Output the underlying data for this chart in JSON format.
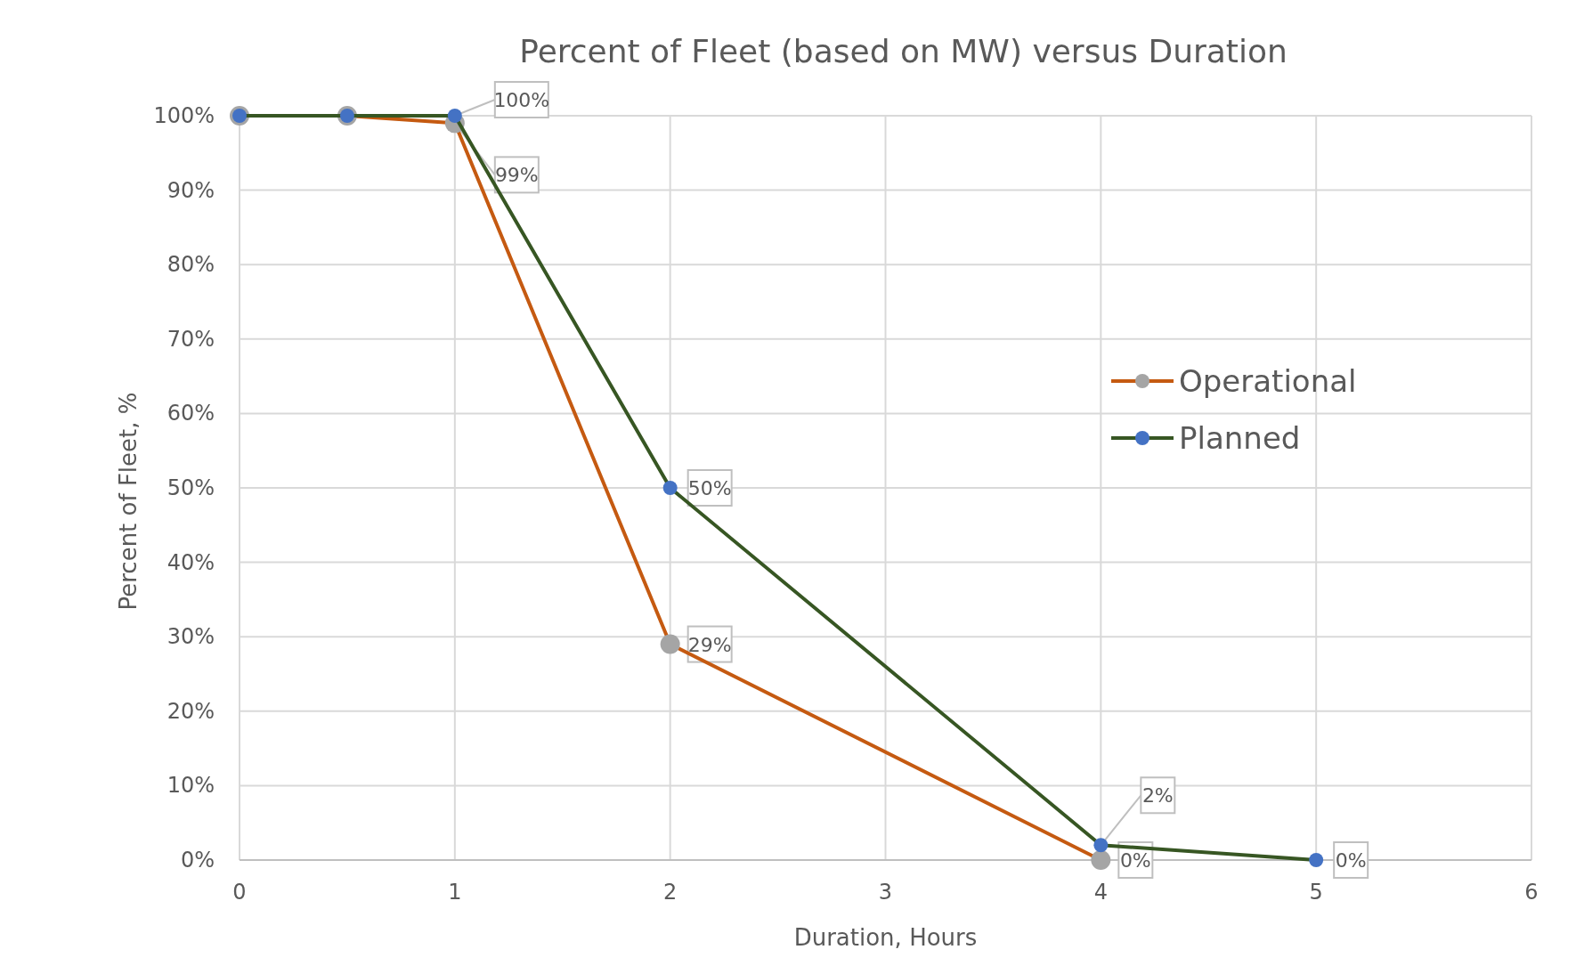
{
  "chart_data": {
    "type": "line",
    "title": "Percent of Fleet (based on MW) versus Duration",
    "xlabel": "Duration, Hours",
    "ylabel": "Percent of Fleet, %",
    "xlim": [
      0,
      6
    ],
    "xticks": [
      0,
      1,
      2,
      3,
      4,
      5,
      6
    ],
    "ylim": [
      0,
      100
    ],
    "yticks": [
      {
        "value": 0,
        "label": "0%"
      },
      {
        "value": 10,
        "label": "10%"
      },
      {
        "value": 20,
        "label": "20%"
      },
      {
        "value": 30,
        "label": "30%"
      },
      {
        "value": 40,
        "label": "40%"
      },
      {
        "value": 50,
        "label": "50%"
      },
      {
        "value": 60,
        "label": "60%"
      },
      {
        "value": 70,
        "label": "70%"
      },
      {
        "value": 80,
        "label": "80%"
      },
      {
        "value": 90,
        "label": "90%"
      },
      {
        "value": 100,
        "label": "100%"
      }
    ],
    "grid": true,
    "legend": "right",
    "marker": "circle",
    "line_style": "solid",
    "series": [
      {
        "name": "Operational",
        "color": "#c55a11",
        "colors": [
          "#a5a5a5",
          "#a5a5a5",
          "#a5a5a5",
          "#a5a5a5",
          "#a5a5a5"
        ],
        "x": [
          0,
          0.5,
          1,
          2,
          4
        ],
        "values": [
          100,
          100,
          99,
          29,
          0
        ],
        "value_labels": [
          null,
          null,
          "99%",
          "29%",
          "0%"
        ]
      },
      {
        "name": "Planned",
        "color": "#375623",
        "colors": [
          "#4472c4",
          "#4472c4",
          "#4472c4",
          "#4472c4",
          "#4472c4",
          "#4472c4"
        ],
        "x": [
          0,
          0.5,
          1,
          2,
          4,
          5
        ],
        "values": [
          100,
          100,
          100,
          50,
          2,
          0
        ],
        "value_labels": [
          null,
          null,
          "100%",
          "50%",
          "2%",
          "0%"
        ]
      }
    ]
  }
}
